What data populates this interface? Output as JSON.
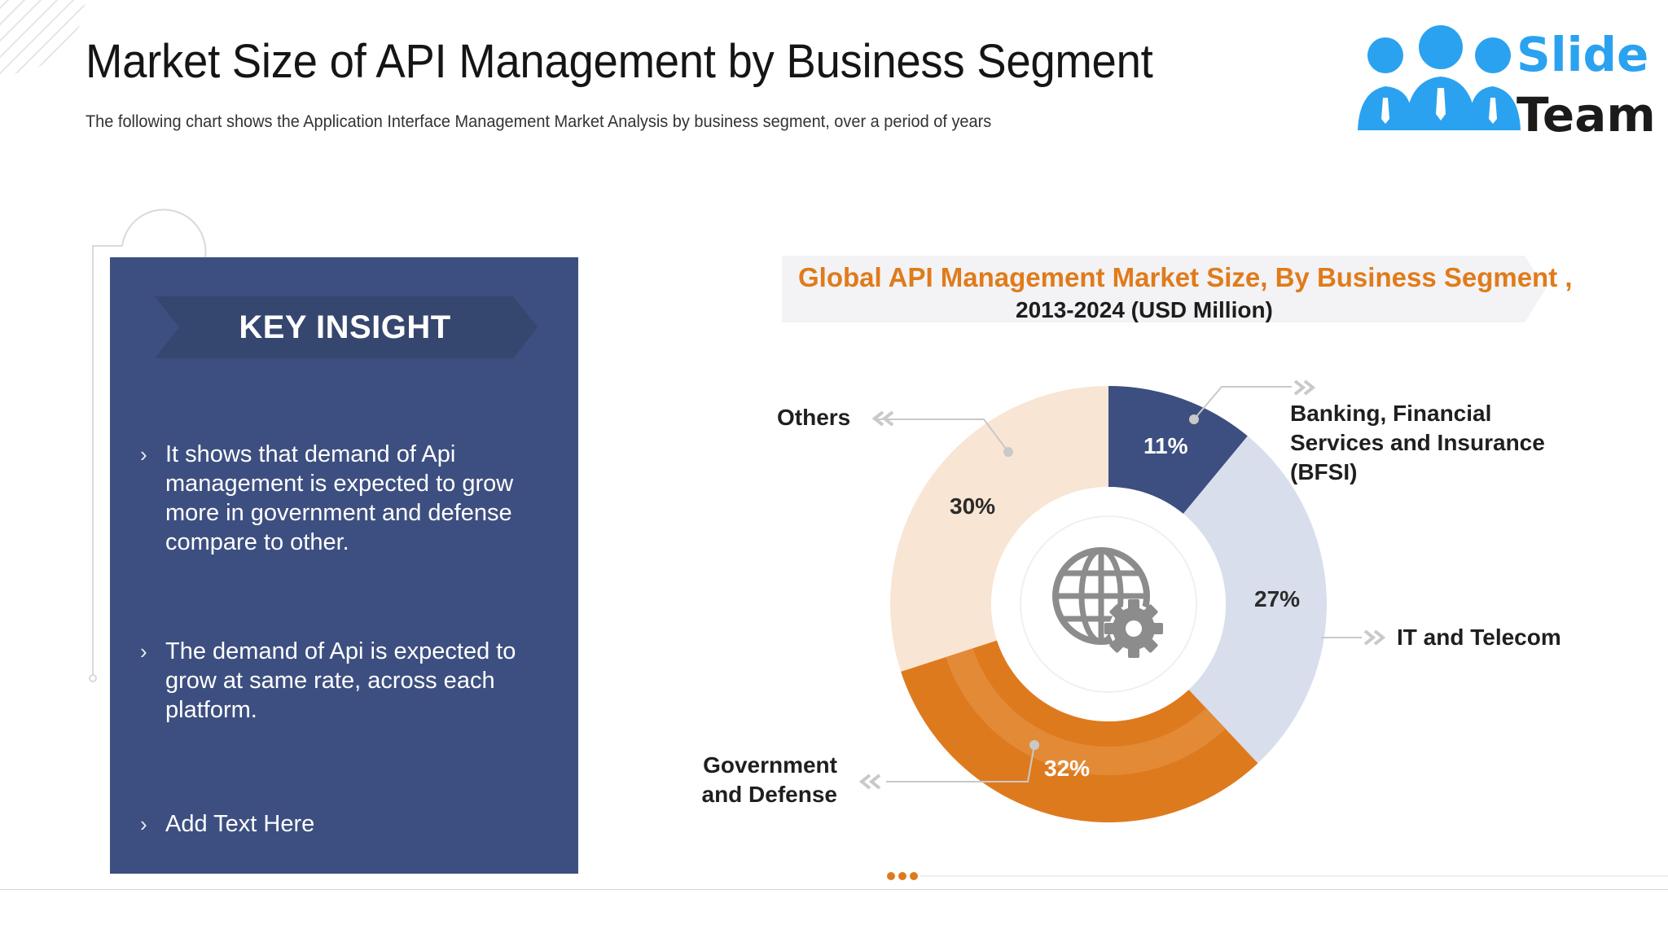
{
  "header": {
    "title": "Market Size of API Management by Business Segment",
    "subtitle": "The following chart shows the Application Interface Management Market Analysis by business segment, over a period of years"
  },
  "logo": {
    "line1": "Slide",
    "line2": "Team",
    "color": "#2aa2f0"
  },
  "insight": {
    "heading": "KEY INSIGHT",
    "bullets": [
      "It shows that demand of Api management is expected to grow more in government and defense compare to other.",
      "The demand of Api is expected to grow at same rate, across each platform.",
      "Add Text Here"
    ],
    "panel_color": "#3d4f80"
  },
  "chart_data": {
    "type": "pie",
    "donut": true,
    "title": "Global API Management Market Size, By Business Segment ,",
    "subtitle": "2013-2024 (USD Million)",
    "unit": "%",
    "slices": [
      {
        "name": "Banking, Financial Services and Insurance (BFSI)",
        "value": 11,
        "label": "11%",
        "color": "#3d4f80",
        "label_color": "#ffffff"
      },
      {
        "name": "IT and Telecom",
        "value": 27,
        "label": "27%",
        "color": "#d8deeb",
        "label_color": "#2b2b2b"
      },
      {
        "name": "Government and Defense",
        "value": 32,
        "label": "32%",
        "color": "#de7a1e",
        "label_color": "#ffffff"
      },
      {
        "name": "Others",
        "value": 30,
        "label": "30%",
        "color": "#f9e5d3",
        "label_color": "#2b2b2b"
      }
    ],
    "legend": "callouts"
  }
}
